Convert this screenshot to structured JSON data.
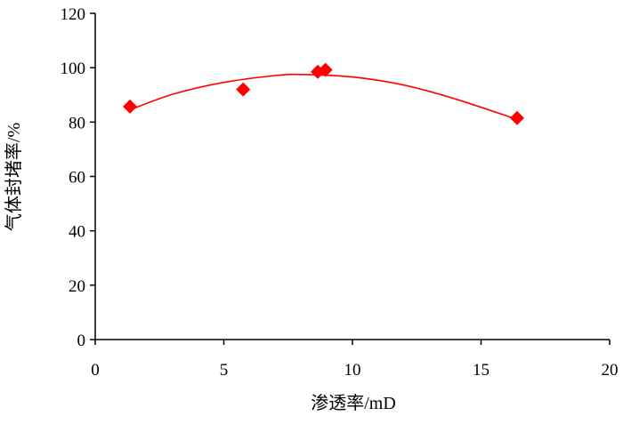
{
  "chart_data": {
    "type": "scatter",
    "xlabel": "渗透率/mD",
    "ylabel": "气体封堵率/%",
    "xlim": [
      0,
      20
    ],
    "ylim": [
      0,
      120
    ],
    "x_ticks": [
      0,
      5,
      10,
      15,
      20
    ],
    "y_ticks": [
      0,
      20,
      40,
      60,
      80,
      100,
      120
    ],
    "grid": false,
    "legend": "none",
    "series": [
      {
        "marker": "diamond",
        "color": "#ff0000",
        "x": [
          1.35,
          5.75,
          8.65,
          8.95,
          16.4
        ],
        "y": [
          85.7,
          92.0,
          98.5,
          99.2,
          81.5
        ]
      }
    ],
    "trendline": {
      "type": "polynomial",
      "color": "#ff0000",
      "x_range": [
        1.35,
        16.4
      ],
      "x": [
        1.35,
        3,
        5,
        7,
        8,
        10,
        12,
        14,
        16.4
      ],
      "y": [
        84.5,
        90.2,
        94.6,
        97.1,
        97.5,
        96.6,
        93.6,
        88.5,
        81.0
      ]
    }
  }
}
